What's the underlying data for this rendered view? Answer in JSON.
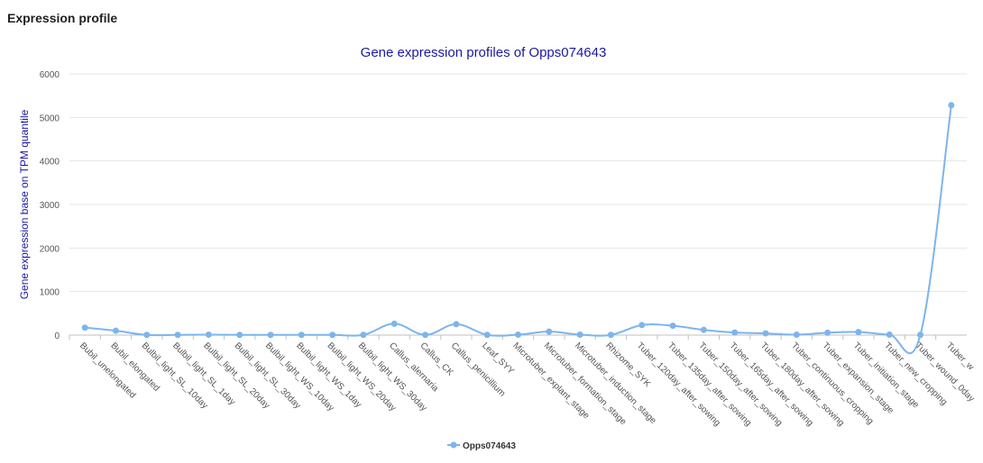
{
  "page": {
    "section_title": "Expression profile"
  },
  "colors": {
    "series": "#7cb5ec",
    "title": "#1a1aa0",
    "ylabel": "#1a1aa0"
  },
  "chart_data": {
    "type": "line",
    "title": "Gene expression profiles of Opps074643",
    "xlabel": "",
    "ylabel": "Gene expression base on TPM quantile",
    "ylim": [
      0,
      6000
    ],
    "yticks": [
      0,
      1000,
      2000,
      3000,
      4000,
      5000,
      6000
    ],
    "grid": true,
    "legend": "bottom-center",
    "categories": [
      "Bubil_unelongated",
      "Bubil_elongated",
      "Bulbil_light_SL_10day",
      "Bulbil_light_SL_1day",
      "Bulbil_light_SL_20day",
      "Bulbil_light_SL_30day",
      "Bulbil_light_WS_10day",
      "Bulbil_light_WS_1day",
      "Bulbil_light_WS_20day",
      "Bulbil_light_WS_30day",
      "Callus_alernaria",
      "Callus_CK",
      "Callus_penicillium",
      "Leaf_SYY",
      "Microtuber_explant_stage",
      "Microtuber_formation_stage",
      "Microtuber_induction_stage",
      "Rhizome_SYK",
      "Tuber_120day_after_sowing",
      "Tuber_135day_after_sowing",
      "Tuber_150day_after_sowing",
      "Tuber_165day_after_sowing",
      "Tuber_180day_after_sowing",
      "Tuber_continuous_cropping",
      "Tuber_expansion_stage",
      "Tuber_initiation_stage",
      "Tuber_new_cropping",
      "Tuber_wound_0day",
      "Tuber_w"
    ],
    "series": [
      {
        "name": "Opps074643",
        "values": [
          170,
          100,
          5,
          5,
          10,
          5,
          5,
          5,
          5,
          5,
          260,
          5,
          250,
          5,
          10,
          80,
          10,
          5,
          230,
          215,
          120,
          60,
          40,
          10,
          55,
          70,
          10,
          5,
          5280
        ]
      }
    ]
  }
}
